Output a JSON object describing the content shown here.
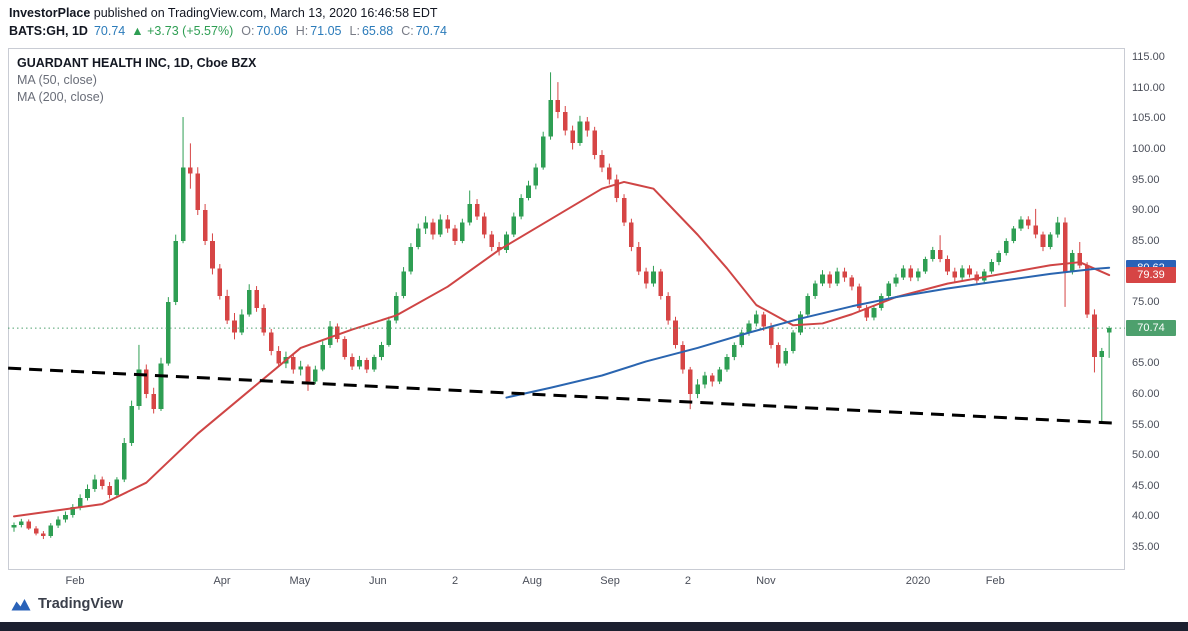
{
  "header": {
    "line1_bold": "InvestorPlace",
    "line1_rest": " published on TradingView.com, March 13, 2020 16:46:58 EDT",
    "symbol": "BATS:GH, 1D",
    "price": "70.74",
    "change": "▲ +3.73 (+5.57%)",
    "ohlc": [
      {
        "label": "O:",
        "value": "70.06"
      },
      {
        "label": "H:",
        "value": "71.05"
      },
      {
        "label": "L:",
        "value": "65.88"
      },
      {
        "label": "C:",
        "value": "70.74"
      }
    ]
  },
  "legend": {
    "title": "GUARDANT HEALTH INC, 1D, Cboe BZX",
    "ma50": "MA (50, close)",
    "ma200": "MA (200, close)"
  },
  "chart_data": {
    "type": "candlestick",
    "title": "GUARDANT HEALTH INC, 1D, Cboe BZX",
    "y_axis": {
      "min": 35,
      "max": 115,
      "step": 5,
      "labels": [
        "115.00",
        "110.00",
        "105.00",
        "100.00",
        "95.00",
        "90.00",
        "85.00",
        "80.00",
        "75.00",
        "70.00",
        "65.00",
        "60.00",
        "55.00",
        "50.00",
        "45.00",
        "40.00",
        "35.00"
      ]
    },
    "x_axis": [
      {
        "label": "Feb",
        "i": 8.3
      },
      {
        "label": "Apr",
        "i": 28.3
      },
      {
        "label": "May",
        "i": 38.9
      },
      {
        "label": "Jun",
        "i": 49.5
      },
      {
        "label": "2",
        "i": 60.0
      },
      {
        "label": "Aug",
        "i": 70.5
      },
      {
        "label": "Sep",
        "i": 81.1
      },
      {
        "label": "2",
        "i": 91.7
      },
      {
        "label": "Nov",
        "i": 102.3
      },
      {
        "label": "2020",
        "i": 123.0
      },
      {
        "label": "Feb",
        "i": 133.5
      }
    ],
    "candles": [
      [
        38.2,
        39.0,
        37.5,
        38.6
      ],
      [
        38.6,
        39.6,
        38.2,
        39.2
      ],
      [
        39.2,
        39.5,
        37.8,
        38.0
      ],
      [
        38.0,
        38.4,
        36.9,
        37.2
      ],
      [
        37.2,
        37.6,
        36.3,
        36.8
      ],
      [
        36.8,
        38.9,
        36.5,
        38.5
      ],
      [
        38.5,
        40.0,
        38.1,
        39.5
      ],
      [
        39.5,
        40.8,
        39.0,
        40.2
      ],
      [
        40.2,
        42.0,
        39.8,
        41.5
      ],
      [
        41.5,
        43.6,
        41.0,
        43.0
      ],
      [
        43.0,
        45.2,
        42.6,
        44.5
      ],
      [
        44.5,
        46.8,
        44.0,
        46.0
      ],
      [
        46.0,
        46.5,
        44.4,
        45.0
      ],
      [
        45.0,
        45.6,
        42.9,
        43.5
      ],
      [
        43.5,
        46.4,
        43.2,
        46.0
      ],
      [
        46.0,
        52.8,
        45.6,
        52.0
      ],
      [
        52.0,
        58.9,
        51.5,
        58.0
      ],
      [
        58.0,
        68.0,
        57.4,
        64.0
      ],
      [
        64.0,
        64.8,
        59.3,
        60.0
      ],
      [
        60.0,
        61.0,
        56.8,
        57.5
      ],
      [
        57.5,
        65.9,
        57.2,
        65.0
      ],
      [
        65.0,
        75.8,
        64.6,
        75.0
      ],
      [
        75.0,
        86.0,
        74.5,
        85.0
      ],
      [
        85.0,
        105.2,
        84.6,
        97.0
      ],
      [
        97.0,
        100.9,
        93.5,
        96.0
      ],
      [
        96.0,
        97.0,
        89.2,
        90.0
      ],
      [
        90.0,
        91.0,
        84.3,
        85.0
      ],
      [
        85.0,
        86.2,
        79.5,
        80.5
      ],
      [
        80.5,
        81.2,
        75.4,
        76.0
      ],
      [
        76.0,
        77.0,
        71.4,
        72.0
      ],
      [
        72.0,
        73.2,
        68.9,
        70.0
      ],
      [
        70.0,
        73.8,
        69.6,
        73.0
      ],
      [
        73.0,
        77.9,
        72.6,
        77.0
      ],
      [
        77.0,
        77.6,
        73.4,
        74.0
      ],
      [
        74.0,
        74.6,
        69.5,
        70.0
      ],
      [
        70.0,
        70.6,
        66.3,
        67.0
      ],
      [
        67.0,
        67.8,
        64.4,
        65.0
      ],
      [
        65.0,
        66.9,
        64.2,
        66.0
      ],
      [
        66.0,
        66.5,
        63.3,
        64.0
      ],
      [
        64.0,
        65.4,
        63.0,
        64.5
      ],
      [
        64.5,
        64.8,
        60.5,
        62.0
      ],
      [
        62.0,
        64.6,
        61.6,
        64.0
      ],
      [
        64.0,
        68.6,
        63.7,
        68.0
      ],
      [
        68.0,
        71.9,
        67.5,
        71.0
      ],
      [
        71.0,
        71.5,
        68.4,
        69.0
      ],
      [
        69.0,
        69.4,
        65.6,
        66.0
      ],
      [
        66.0,
        66.6,
        63.9,
        64.5
      ],
      [
        64.5,
        66.2,
        64.0,
        65.5
      ],
      [
        65.5,
        65.9,
        63.4,
        64.0
      ],
      [
        64.0,
        66.4,
        63.6,
        66.0
      ],
      [
        66.0,
        68.5,
        65.5,
        68.0
      ],
      [
        68.0,
        72.6,
        67.7,
        72.0
      ],
      [
        72.0,
        76.6,
        71.5,
        76.0
      ],
      [
        76.0,
        80.7,
        75.6,
        80.0
      ],
      [
        80.0,
        84.6,
        79.5,
        84.0
      ],
      [
        84.0,
        87.8,
        83.6,
        87.0
      ],
      [
        87.0,
        89.0,
        86.1,
        88.0
      ],
      [
        88.0,
        88.6,
        85.2,
        86.0
      ],
      [
        86.0,
        89.3,
        85.6,
        88.5
      ],
      [
        88.5,
        89.2,
        86.3,
        87.0
      ],
      [
        87.0,
        87.6,
        84.3,
        85.0
      ],
      [
        85.0,
        88.6,
        84.6,
        88.0
      ],
      [
        88.0,
        93.2,
        87.5,
        91.0
      ],
      [
        91.0,
        91.8,
        88.4,
        89.0
      ],
      [
        89.0,
        89.6,
        85.4,
        86.0
      ],
      [
        86.0,
        86.6,
        83.3,
        84.0
      ],
      [
        84.0,
        84.8,
        82.6,
        83.5
      ],
      [
        83.5,
        86.5,
        83.0,
        86.0
      ],
      [
        86.0,
        89.6,
        85.6,
        89.0
      ],
      [
        89.0,
        92.6,
        88.5,
        92.0
      ],
      [
        92.0,
        94.8,
        91.6,
        94.0
      ],
      [
        94.0,
        97.6,
        93.4,
        97.0
      ],
      [
        97.0,
        102.8,
        96.6,
        102.0
      ],
      [
        102.0,
        112.5,
        101.5,
        108.0
      ],
      [
        108.0,
        110.9,
        105.0,
        106.0
      ],
      [
        106.0,
        107.0,
        102.2,
        103.0
      ],
      [
        103.0,
        103.8,
        99.9,
        101.0
      ],
      [
        101.0,
        105.4,
        100.5,
        104.5
      ],
      [
        104.5,
        105.2,
        102.0,
        103.0
      ],
      [
        103.0,
        103.6,
        98.3,
        99.0
      ],
      [
        99.0,
        99.8,
        96.2,
        97.0
      ],
      [
        97.0,
        97.6,
        94.2,
        95.0
      ],
      [
        95.0,
        95.8,
        91.3,
        92.0
      ],
      [
        92.0,
        92.6,
        87.4,
        88.0
      ],
      [
        88.0,
        88.6,
        83.3,
        84.0
      ],
      [
        84.0,
        84.8,
        79.4,
        80.0
      ],
      [
        80.0,
        80.6,
        77.2,
        78.0
      ],
      [
        78.0,
        80.9,
        77.5,
        80.0
      ],
      [
        80.0,
        80.4,
        75.4,
        76.0
      ],
      [
        76.0,
        76.6,
        71.3,
        72.0
      ],
      [
        72.0,
        72.6,
        67.4,
        68.0
      ],
      [
        68.0,
        68.6,
        63.3,
        64.0
      ],
      [
        64.0,
        64.4,
        57.5,
        60.0
      ],
      [
        60.0,
        62.4,
        59.3,
        61.5
      ],
      [
        61.5,
        63.6,
        60.9,
        63.0
      ],
      [
        63.0,
        63.4,
        61.2,
        62.0
      ],
      [
        62.0,
        64.4,
        61.6,
        64.0
      ],
      [
        64.0,
        66.5,
        63.6,
        66.0
      ],
      [
        66.0,
        68.4,
        65.5,
        68.0
      ],
      [
        68.0,
        70.5,
        67.6,
        70.0
      ],
      [
        70.0,
        72.0,
        69.5,
        71.5
      ],
      [
        71.5,
        73.6,
        71.0,
        73.0
      ],
      [
        73.0,
        73.4,
        70.3,
        71.0
      ],
      [
        71.0,
        71.6,
        67.4,
        68.0
      ],
      [
        68.0,
        68.4,
        64.3,
        65.0
      ],
      [
        65.0,
        67.5,
        64.6,
        67.0
      ],
      [
        67.0,
        70.4,
        66.6,
        70.0
      ],
      [
        70.0,
        73.5,
        69.6,
        73.0
      ],
      [
        73.0,
        76.4,
        72.6,
        76.0
      ],
      [
        76.0,
        78.5,
        75.5,
        78.0
      ],
      [
        78.0,
        80.2,
        77.6,
        79.5
      ],
      [
        79.5,
        80.0,
        77.3,
        78.0
      ],
      [
        78.0,
        80.6,
        77.6,
        80.0
      ],
      [
        80.0,
        80.6,
        78.3,
        79.0
      ],
      [
        79.0,
        79.4,
        76.9,
        77.5
      ],
      [
        77.5,
        78.0,
        73.4,
        74.0
      ],
      [
        74.0,
        74.5,
        71.9,
        72.5
      ],
      [
        72.5,
        74.5,
        72.0,
        74.0
      ],
      [
        74.0,
        76.4,
        73.6,
        76.0
      ],
      [
        76.0,
        78.4,
        75.6,
        78.0
      ],
      [
        78.0,
        79.6,
        77.5,
        79.0
      ],
      [
        79.0,
        81.0,
        78.6,
        80.5
      ],
      [
        80.5,
        81.0,
        78.4,
        79.0
      ],
      [
        79.0,
        80.5,
        78.4,
        80.0
      ],
      [
        80.0,
        82.4,
        79.6,
        82.0
      ],
      [
        82.0,
        84.0,
        81.6,
        83.5
      ],
      [
        83.5,
        85.9,
        81.5,
        82.0
      ],
      [
        82.0,
        82.6,
        79.4,
        80.0
      ],
      [
        80.0,
        80.6,
        78.3,
        79.0
      ],
      [
        79.0,
        81.0,
        78.6,
        80.5
      ],
      [
        80.5,
        81.0,
        79.0,
        79.5
      ],
      [
        79.5,
        80.0,
        77.9,
        78.5
      ],
      [
        78.5,
        80.4,
        78.0,
        80.0
      ],
      [
        80.0,
        82.0,
        79.6,
        81.5
      ],
      [
        81.5,
        83.4,
        81.0,
        83.0
      ],
      [
        83.0,
        85.4,
        82.6,
        85.0
      ],
      [
        85.0,
        87.4,
        84.6,
        87.0
      ],
      [
        87.0,
        89.0,
        86.6,
        88.5
      ],
      [
        88.5,
        89.0,
        86.9,
        87.5
      ],
      [
        87.5,
        90.2,
        85.4,
        86.0
      ],
      [
        86.0,
        86.5,
        83.3,
        84.0
      ],
      [
        84.0,
        86.4,
        83.6,
        86.0
      ],
      [
        86.0,
        88.9,
        85.5,
        88.0
      ],
      [
        88.0,
        88.8,
        74.2,
        80.0
      ],
      [
        80.0,
        83.5,
        79.5,
        83.0
      ],
      [
        83.0,
        84.8,
        80.5,
        81.0
      ],
      [
        81.0,
        81.5,
        72.4,
        73.0
      ],
      [
        73.0,
        73.8,
        63.5,
        66.0
      ],
      [
        66.0,
        67.5,
        55.5,
        67.0
      ],
      [
        70.06,
        71.05,
        65.88,
        70.74
      ]
    ],
    "series": [
      {
        "name": "MA (50, close)",
        "color": "#cf4545",
        "points": [
          [
            0,
            40.0
          ],
          [
            12,
            42.0
          ],
          [
            18,
            45.5
          ],
          [
            25,
            53.5
          ],
          [
            32,
            60.5
          ],
          [
            39,
            67.5
          ],
          [
            46,
            70.5
          ],
          [
            52,
            72.8
          ],
          [
            59,
            77.5
          ],
          [
            66,
            83.5
          ],
          [
            73,
            88.5
          ],
          [
            80,
            93.5
          ],
          [
            83,
            94.6
          ],
          [
            87,
            93.5
          ],
          [
            93,
            86.0
          ],
          [
            97,
            80.5
          ],
          [
            101,
            74.5
          ],
          [
            106,
            71.2
          ],
          [
            110,
            71.5
          ],
          [
            114,
            73.0
          ],
          [
            120,
            75.8
          ],
          [
            127,
            78.0
          ],
          [
            134,
            79.5
          ],
          [
            141,
            81.0
          ],
          [
            145,
            81.5
          ],
          [
            149,
            79.4
          ]
        ]
      },
      {
        "name": "MA (200, close)",
        "color": "#2a65b0",
        "points": [
          [
            67,
            59.4
          ],
          [
            73,
            61.0
          ],
          [
            80,
            63.0
          ],
          [
            86,
            65.3
          ],
          [
            93,
            67.5
          ],
          [
            100,
            70.0
          ],
          [
            107,
            72.3
          ],
          [
            114,
            74.3
          ],
          [
            120,
            75.8
          ],
          [
            127,
            77.2
          ],
          [
            134,
            78.4
          ],
          [
            141,
            79.6
          ],
          [
            147,
            80.4
          ],
          [
            149,
            80.6
          ]
        ]
      }
    ],
    "trendline": {
      "from": [
        -0.8,
        64.2
      ],
      "to": [
        150.2,
        55.2
      ],
      "style": "dashed",
      "color": "#000000"
    },
    "last_price": {
      "value": 70.74,
      "label": "70.74"
    },
    "price_labels": [
      {
        "label": "80.62",
        "bg": "#2a62b8",
        "p": 80.62
      },
      {
        "label": "79.39",
        "bg": "#d64545",
        "p": 79.39
      },
      {
        "label": "70.74",
        "bg": "#4da06d",
        "p": 70.74
      }
    ]
  },
  "footer": {
    "brand": "TradingView"
  },
  "colors": {
    "up": "#2e9e53",
    "down": "#d64545",
    "text_dark": "#131722",
    "text_gray": "#787b86",
    "frame": "#c9ccd4",
    "axis_text": "#4a4e59",
    "bottom_bar": "#1c2030"
  }
}
